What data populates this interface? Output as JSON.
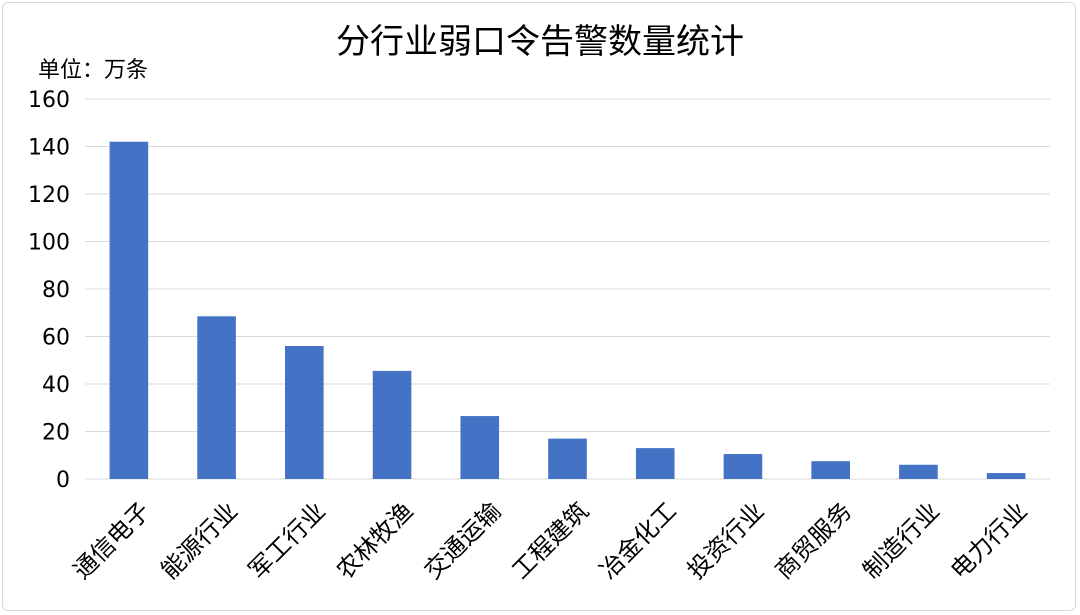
{
  "chart_data": {
    "type": "bar",
    "title": "分行业弱口令告警数量统计",
    "unit_label": "单位：万条",
    "categories": [
      "通信电子",
      "能源行业",
      "军工行业",
      "农林牧渔",
      "交通运输",
      "工程建筑",
      "冶金化工",
      "投资行业",
      "商贸服务",
      "制造行业",
      "电力行业"
    ],
    "values": [
      142,
      68.5,
      56,
      45.5,
      26.5,
      17,
      13,
      10.5,
      7.5,
      6,
      2.5
    ],
    "ylim": [
      0,
      160
    ],
    "yticks": [
      0,
      20,
      40,
      60,
      80,
      100,
      120,
      140,
      160
    ],
    "grid": true,
    "bar_color": "#4472c4",
    "grid_color": "#d9d9d9"
  }
}
